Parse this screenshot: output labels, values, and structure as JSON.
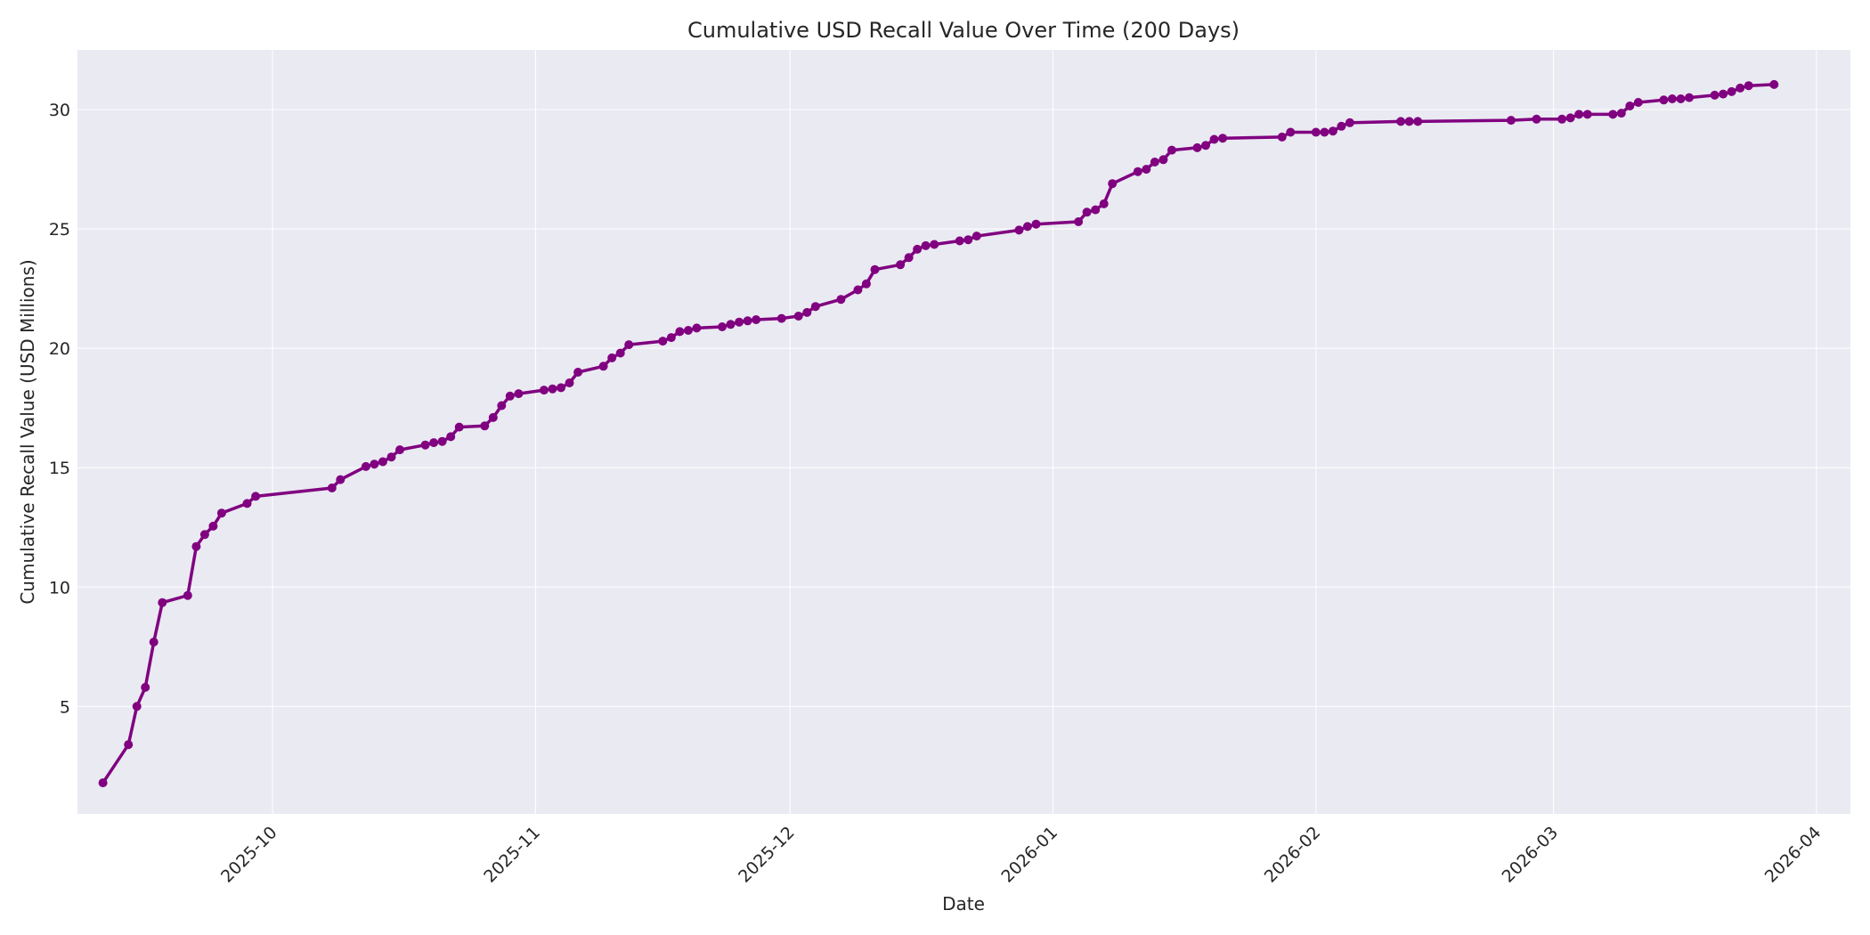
{
  "chart_data": {
    "type": "line",
    "title": "Cumulative USD Recall Value Over Time (200 Days)",
    "xlabel": "Date",
    "ylabel": "Cumulative Recall Value (USD Millions)",
    "xlim": [
      "2025-09-08",
      "2026-04-05"
    ],
    "ylim": [
      0.5,
      32.5
    ],
    "x_ticks": [
      "2025-10",
      "2025-11",
      "2025-12",
      "2026-01",
      "2026-02",
      "2026-03",
      "2026-04"
    ],
    "y_ticks": [
      "5",
      "10",
      "15",
      "20",
      "25",
      "30"
    ],
    "grid": true,
    "line_color": "#800080",
    "plot_background": "#eaeaf2",
    "series": [
      {
        "x": [
          "2025-09-11",
          "2025-09-14",
          "2025-09-15",
          "2025-09-16",
          "2025-09-17",
          "2025-09-18",
          "2025-09-21",
          "2025-09-22",
          "2025-09-23",
          "2025-09-24",
          "2025-09-25",
          "2025-09-28",
          "2025-09-29",
          "2025-10-08",
          "2025-10-09",
          "2025-10-12",
          "2025-10-13",
          "2025-10-14",
          "2025-10-15",
          "2025-10-16",
          "2025-10-19",
          "2025-10-20",
          "2025-10-21",
          "2025-10-22",
          "2025-10-23",
          "2025-10-26",
          "2025-10-27",
          "2025-10-28",
          "2025-10-29",
          "2025-10-30",
          "2025-11-02",
          "2025-11-03",
          "2025-11-04",
          "2025-11-05",
          "2025-11-06",
          "2025-11-09",
          "2025-11-10",
          "2025-11-11",
          "2025-11-12",
          "2025-11-16",
          "2025-11-17",
          "2025-11-18",
          "2025-11-19",
          "2025-11-20",
          "2025-11-23",
          "2025-11-24",
          "2025-11-25",
          "2025-11-26",
          "2025-11-27",
          "2025-11-30",
          "2025-12-02",
          "2025-12-03",
          "2025-12-04",
          "2025-12-07",
          "2025-12-09",
          "2025-12-10",
          "2025-12-11",
          "2025-12-14",
          "2025-12-15",
          "2025-12-16",
          "2025-12-17",
          "2025-12-18",
          "2025-12-21",
          "2025-12-22",
          "2025-12-23",
          "2025-12-28",
          "2025-12-29",
          "2025-12-30",
          "2026-01-04",
          "2026-01-05",
          "2026-01-06",
          "2026-01-07",
          "2026-01-08",
          "2026-01-11",
          "2026-01-12",
          "2026-01-13",
          "2026-01-14",
          "2026-01-15",
          "2026-01-18",
          "2026-01-19",
          "2026-01-20",
          "2026-01-21",
          "2026-01-28",
          "2026-01-29",
          "2026-02-01",
          "2026-02-02",
          "2026-02-03",
          "2026-02-04",
          "2026-02-05",
          "2026-02-11",
          "2026-02-12",
          "2026-02-13",
          "2026-02-24",
          "2026-02-27",
          "2026-03-02",
          "2026-03-03",
          "2026-03-04",
          "2026-03-05",
          "2026-03-08",
          "2026-03-09",
          "2026-03-10",
          "2026-03-11",
          "2026-03-14",
          "2026-03-15",
          "2026-03-16",
          "2026-03-17",
          "2026-03-20",
          "2026-03-21",
          "2026-03-22",
          "2026-03-23",
          "2026-03-24",
          "2026-03-27"
        ],
        "values": [
          1.8,
          3.4,
          5.0,
          5.8,
          7.7,
          9.35,
          9.65,
          11.7,
          12.2,
          12.55,
          13.1,
          13.5,
          13.8,
          14.15,
          14.5,
          15.05,
          15.15,
          15.25,
          15.45,
          15.75,
          15.95,
          16.05,
          16.1,
          16.3,
          16.7,
          16.75,
          17.1,
          17.6,
          18.0,
          18.1,
          18.25,
          18.3,
          18.35,
          18.55,
          19.0,
          19.25,
          19.6,
          19.8,
          20.15,
          20.3,
          20.45,
          20.7,
          20.75,
          20.85,
          20.9,
          21.0,
          21.1,
          21.15,
          21.2,
          21.25,
          21.35,
          21.5,
          21.75,
          22.05,
          22.45,
          22.7,
          23.3,
          23.5,
          23.8,
          24.15,
          24.3,
          24.35,
          24.5,
          24.55,
          24.7,
          24.95,
          25.1,
          25.2,
          25.3,
          25.7,
          25.8,
          26.05,
          26.9,
          27.4,
          27.5,
          27.8,
          27.9,
          28.3,
          28.4,
          28.5,
          28.75,
          28.8,
          28.85,
          29.05,
          29.05,
          29.05,
          29.1,
          29.3,
          29.45,
          29.5,
          29.5,
          29.5,
          29.55,
          29.6,
          29.6,
          29.65,
          29.8,
          29.8,
          29.8,
          29.85,
          30.15,
          30.3,
          30.4,
          30.45,
          30.45,
          30.5,
          30.6,
          30.65,
          30.75,
          30.9,
          31.0,
          31.05
        ]
      }
    ]
  }
}
